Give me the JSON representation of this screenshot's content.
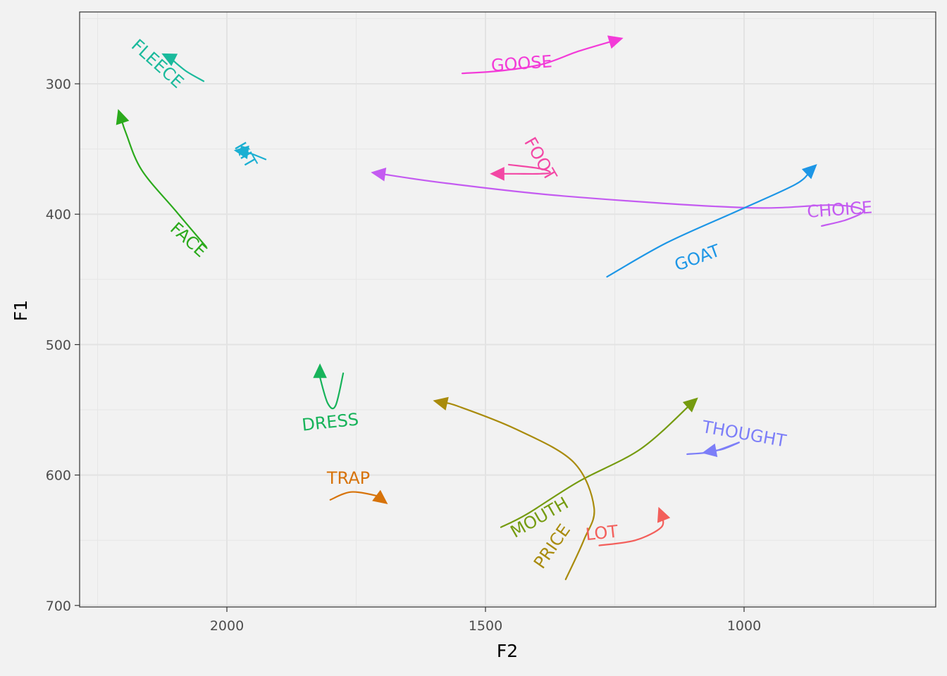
{
  "chart_data": {
    "type": "line",
    "title": "",
    "xlabel": "F2",
    "ylabel": "F1",
    "x_reversed": true,
    "y_reversed": true,
    "xlim": [
      2500,
      500
    ],
    "ylim": [
      700,
      250
    ],
    "x_ticks": [
      2000,
      1500,
      1000
    ],
    "y_ticks": [
      300,
      400,
      500,
      600,
      700
    ],
    "grid": true,
    "legend": "none",
    "series": [
      {
        "name": "GOOSE",
        "color": "#F33BD8",
        "label_pos": [
          1430,
          285
        ],
        "label_angle": -4,
        "points": [
          [
            1545,
            292
          ],
          [
            1470,
            290
          ],
          [
            1390,
            285
          ],
          [
            1320,
            275
          ],
          [
            1235,
            265
          ]
        ]
      },
      {
        "name": "FLEECE",
        "color": "#1ABA9C",
        "label_pos": [
          2135,
          285
        ],
        "label_angle": 42,
        "points": [
          [
            2045,
            298
          ],
          [
            2080,
            290
          ],
          [
            2110,
            280
          ],
          [
            2125,
            277
          ]
        ]
      },
      {
        "name": "KIT",
        "color": "#1BAFD2",
        "label_pos": [
          1965,
          355
        ],
        "label_angle": 60,
        "points": [
          [
            1925,
            358
          ],
          [
            1950,
            354
          ],
          [
            1968,
            352
          ],
          [
            1985,
            351
          ]
        ]
      },
      {
        "name": "FACE",
        "color": "#2BAA1C",
        "label_pos": [
          2075,
          420
        ],
        "label_angle": 42,
        "points": [
          [
            2040,
            425
          ],
          [
            2100,
            397
          ],
          [
            2165,
            366
          ],
          [
            2195,
            338
          ],
          [
            2210,
            320
          ]
        ]
      },
      {
        "name": "FOOT",
        "color": "#F347A5",
        "label_pos": [
          1395,
          358
        ],
        "label_angle": 60,
        "points": [
          [
            1455,
            362
          ],
          [
            1395,
            365
          ],
          [
            1375,
            368
          ],
          [
            1395,
            369
          ],
          [
            1440,
            369
          ],
          [
            1490,
            369
          ]
        ]
      },
      {
        "name": "CHOICE",
        "color": "#C45BF1",
        "label_pos": [
          815,
          397
        ],
        "label_angle": -4,
        "points": [
          [
            850,
            409
          ],
          [
            800,
            404
          ],
          [
            770,
            397
          ],
          [
            830,
            393
          ],
          [
            1000,
            395
          ],
          [
            1350,
            386
          ],
          [
            1580,
            376
          ],
          [
            1720,
            368
          ]
        ]
      },
      {
        "name": "GOAT",
        "color": "#1D96E6",
        "label_pos": [
          1090,
          434
        ],
        "label_angle": -20,
        "points": [
          [
            1265,
            448
          ],
          [
            1150,
            422
          ],
          [
            1010,
            397
          ],
          [
            900,
            377
          ],
          [
            860,
            362
          ]
        ]
      },
      {
        "name": "DRESS",
        "color": "#17B35A",
        "label_pos": [
          1800,
          560
        ],
        "label_angle": -6,
        "points": [
          [
            1775,
            522
          ],
          [
            1790,
            547
          ],
          [
            1805,
            545
          ],
          [
            1820,
            525
          ],
          [
            1820,
            515
          ]
        ]
      },
      {
        "name": "TRAP",
        "color": "#D7730A",
        "label_pos": [
          1765,
          603
        ],
        "label_angle": 0,
        "points": [
          [
            1800,
            619
          ],
          [
            1760,
            613
          ],
          [
            1710,
            616
          ],
          [
            1690,
            622
          ]
        ]
      },
      {
        "name": "MOUTH",
        "color": "#759B0F",
        "label_pos": [
          1395,
          633
        ],
        "label_angle": -30,
        "points": [
          [
            1470,
            640
          ],
          [
            1420,
            630
          ],
          [
            1320,
            605
          ],
          [
            1200,
            580
          ],
          [
            1090,
            541
          ]
        ]
      },
      {
        "name": "PRICE",
        "color": "#A98B0C",
        "label_pos": [
          1370,
          655
        ],
        "label_angle": -55,
        "points": [
          [
            1345,
            680
          ],
          [
            1310,
            650
          ],
          [
            1290,
            625
          ],
          [
            1330,
            590
          ],
          [
            1440,
            565
          ],
          [
            1555,
            547
          ],
          [
            1600,
            543
          ]
        ]
      },
      {
        "name": "THOUGHT",
        "color": "#7C7EF8",
        "label_pos": [
          1000,
          569
        ],
        "label_angle": 10,
        "points": [
          [
            1110,
            584
          ],
          [
            1060,
            582
          ],
          [
            1010,
            575
          ],
          [
            1040,
            580
          ],
          [
            1080,
            583
          ]
        ]
      },
      {
        "name": "LOT",
        "color": "#F35F5B",
        "label_pos": [
          1275,
          645
        ],
        "label_angle": -6,
        "points": [
          [
            1280,
            654
          ],
          [
            1210,
            650
          ],
          [
            1160,
            640
          ],
          [
            1160,
            630
          ],
          [
            1165,
            625
          ]
        ]
      }
    ]
  }
}
